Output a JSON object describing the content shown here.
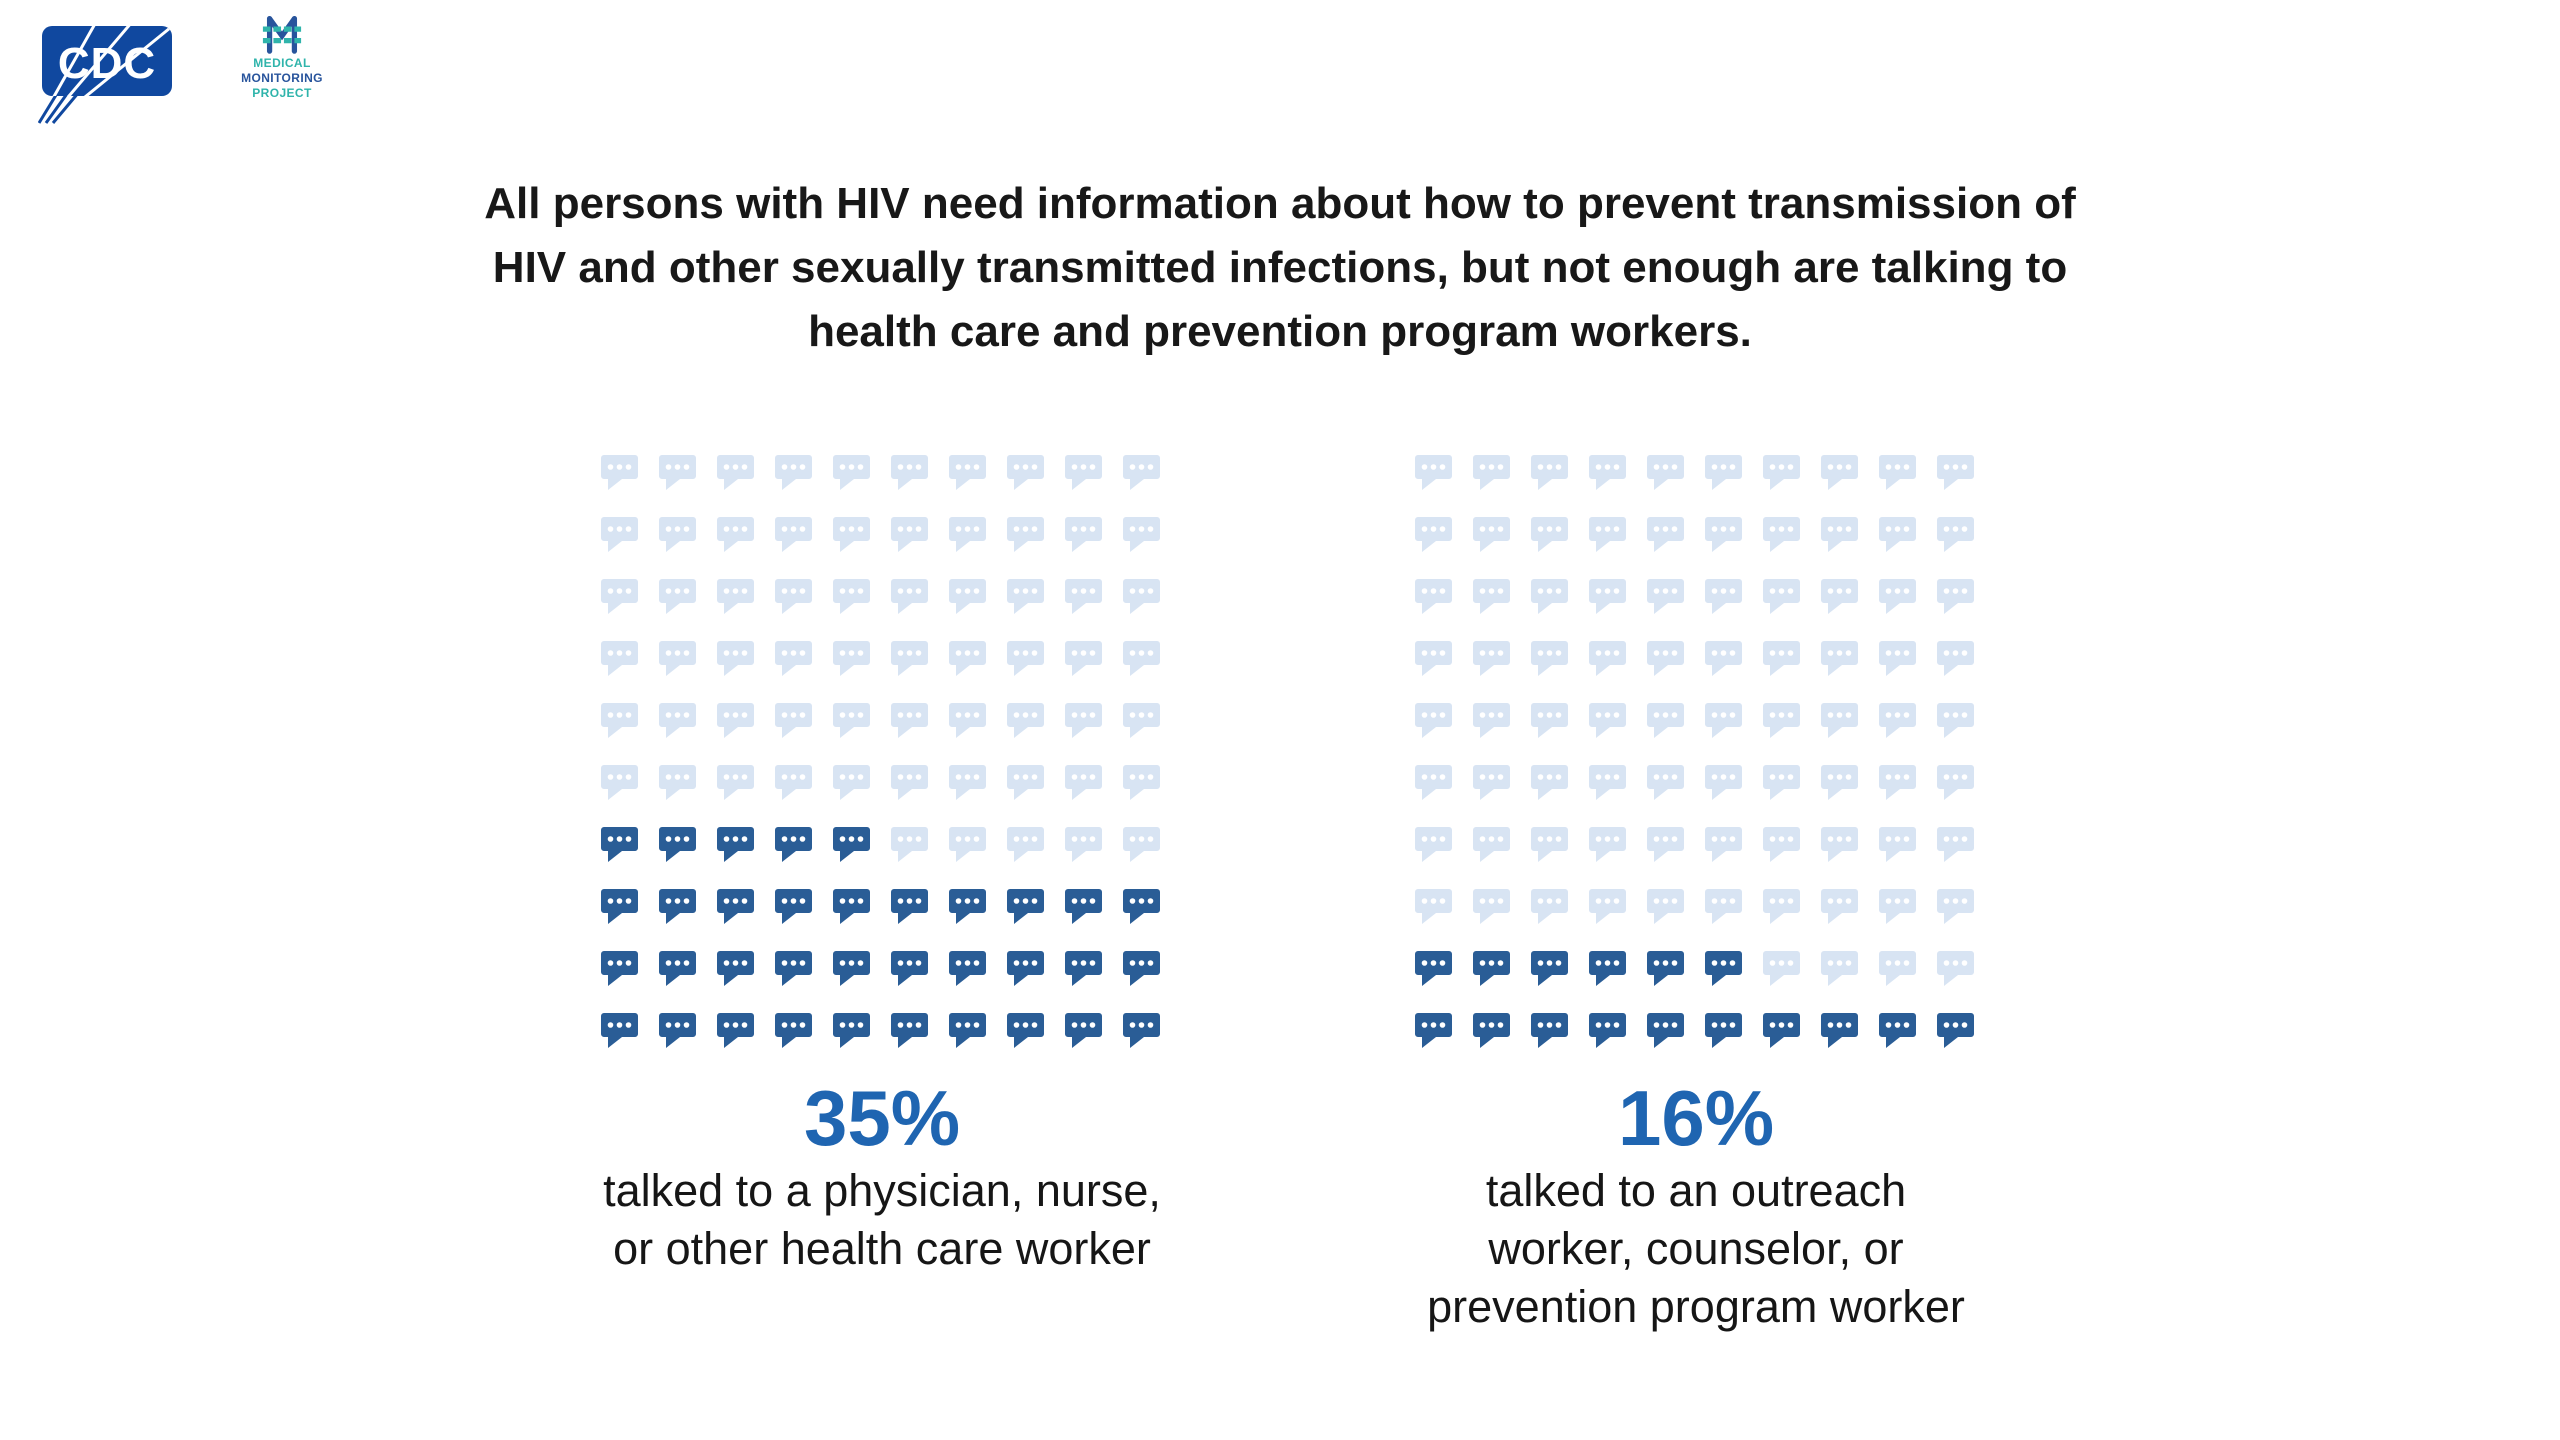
{
  "palette": {
    "percent_blue": "#1F65B1",
    "icon_filled": "#2A5D96",
    "icon_empty": "#D8E4F3",
    "cdc_blue": "#10489F",
    "mmp_teal": "#2FB4AB",
    "mmp_blue": "#28549C",
    "text_dark": "#181818"
  },
  "header": {
    "cdc_logo_text": "CDC",
    "mmp_logo_lines": [
      "MEDICAL",
      "MONITORING",
      "PROJECT"
    ]
  },
  "title": {
    "text": "All persons with HIV need information about how to prevent transmission of HIV and other sexually transmitted infections, but not enough are talking to health care and prevention program workers.",
    "lines": [
      "All persons with HIV need information about how to prevent transmission of",
      "HIV and other sexually transmitted infections, but not enough are talking to",
      "health care and prevention program workers."
    ]
  },
  "chart_data": [
    {
      "type": "pictogram-waffle",
      "unit_icon": "speech-bubble-icon",
      "grid_rows": 10,
      "grid_cols": 10,
      "total_units": 100,
      "filled_units": 35,
      "value_pct": 35,
      "fill_order": "bottom-left, row by row",
      "label_value": "35%",
      "caption": "talked to a physician, nurse, or other health care worker",
      "caption_lines": [
        "talked to a physician, nurse,",
        "or other health care worker"
      ],
      "colors": {
        "filled": "#2A5D96",
        "empty": "#D8E4F3"
      }
    },
    {
      "type": "pictogram-waffle",
      "unit_icon": "speech-bubble-icon",
      "grid_rows": 10,
      "grid_cols": 10,
      "total_units": 100,
      "filled_units": 16,
      "value_pct": 16,
      "fill_order": "bottom-left, row by row",
      "label_value": "16%",
      "caption": "talked to an outreach worker, counselor, or prevention program worker",
      "caption_lines": [
        "talked to an outreach",
        "worker, counselor, or",
        "prevention program worker"
      ],
      "colors": {
        "filled": "#2A5D96",
        "empty": "#D8E4F3"
      }
    }
  ]
}
